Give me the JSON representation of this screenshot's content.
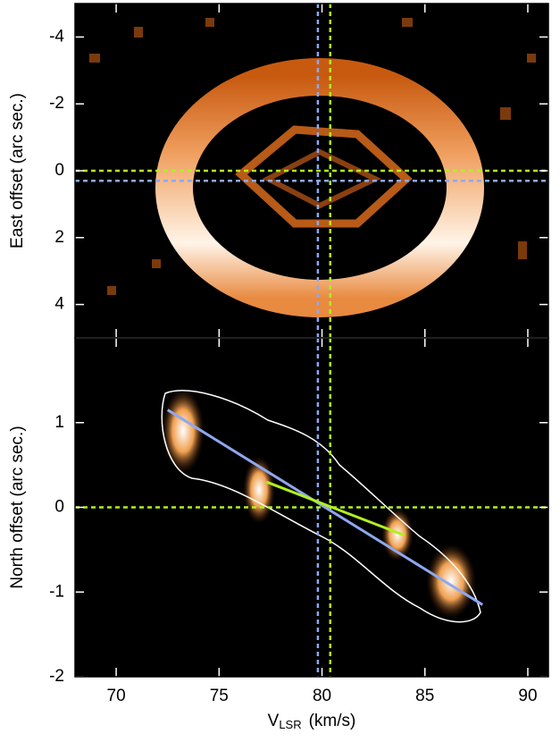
{
  "chart_data": [
    {
      "type": "image",
      "ylabel": "East offset (arc sec.)",
      "xlim": [
        68,
        91
      ],
      "xticks": [
        70,
        75,
        80,
        85,
        90
      ],
      "ylim": [
        -5,
        5
      ],
      "yticks": [
        -4,
        -2,
        0,
        2,
        4
      ],
      "y_reversed": true,
      "vlines": [
        {
          "value": 79.8,
          "color": "#8ea8f0"
        },
        {
          "value": 80.4,
          "color": "#b0f020"
        }
      ],
      "hlines": [
        {
          "value": 0,
          "color": "#b0f020"
        },
        {
          "value": 0.3,
          "color": "#8ea8f0"
        }
      ]
    },
    {
      "type": "image",
      "ylabel": "North offset (arc sec.)",
      "xlabel": [
        "V",
        "LSR",
        "(km/s)"
      ],
      "xlim": [
        68,
        91
      ],
      "xticks": [
        70,
        75,
        80,
        85,
        90
      ],
      "ylim": [
        -2,
        2
      ],
      "yticks": [
        -2,
        -1,
        0,
        1
      ],
      "vlines": [
        {
          "value": 79.8,
          "color": "#8ea8f0"
        },
        {
          "value": 80.4,
          "color": "#b0f020"
        }
      ],
      "hlines": [
        {
          "value": 0,
          "color": "#b0f020"
        }
      ],
      "series": [
        {
          "color": "#8ea8f0",
          "x": [
            72.5,
            87.8
          ],
          "values": [
            1.15,
            -1.15
          ]
        },
        {
          "color": "#b0f020",
          "x": [
            77.3,
            84
          ],
          "values": [
            0.3,
            -0.33
          ]
        }
      ]
    }
  ]
}
